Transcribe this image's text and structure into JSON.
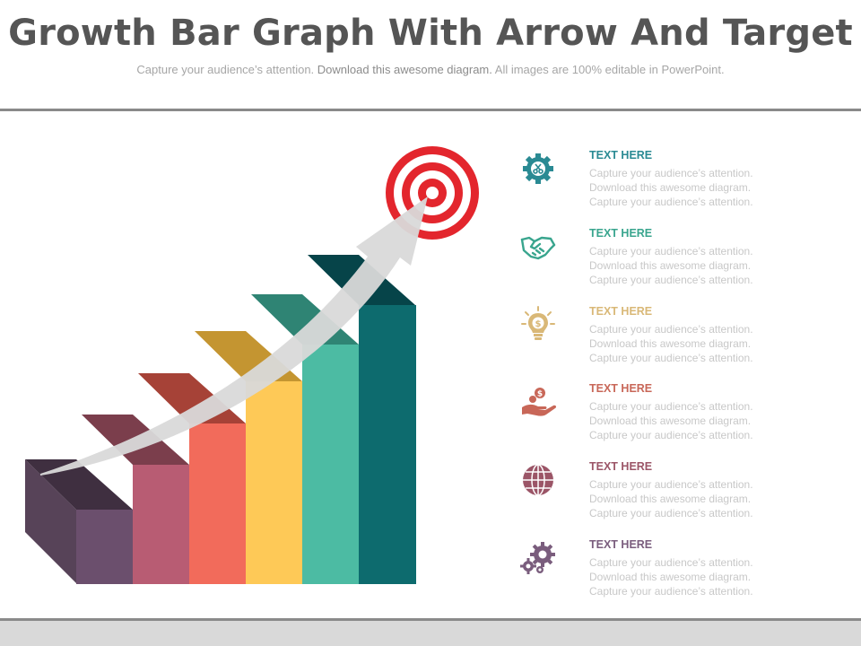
{
  "header": {
    "title": "Growth Bar Graph With Arrow And Target",
    "subtitle_a": "Capture your audience’s attention. ",
    "subtitle_b": "Download this awesome diagram.",
    "subtitle_c": " All images are 100% editable in PowerPoint."
  },
  "colors": {
    "bars": [
      "#6b4f6d",
      "#b85c73",
      "#f26b5b",
      "#fec957",
      "#4cbba3",
      "#0d6b6e"
    ],
    "arrow": "#d9d9d9",
    "target_red": "#e3262d",
    "rule": "#8a8a8a",
    "footer": "#d9d9d9"
  },
  "items": [
    {
      "title": "TEXT HERE",
      "color": "#2a8a93",
      "icon": "gear-scissors-icon",
      "line1": "Capture  your  audience’s  attention.",
      "line2": "Download  this awesome  diagram.",
      "line3": "Capture  your  audience’s  attention."
    },
    {
      "title": "TEXT HERE",
      "color": "#39a58e",
      "icon": "handshake-icon",
      "line1": "Capture  your  audience’s  attention.",
      "line2": "Download  this awesome  diagram.",
      "line3": "Capture  your  audience’s  attention."
    },
    {
      "title": "TEXT HERE",
      "color": "#d9b877",
      "icon": "lightbulb-dollar-icon",
      "line1": "Capture  your  audience’s  attention.",
      "line2": "Download  this awesome  diagram.",
      "line3": "Capture  your  audience’s  attention."
    },
    {
      "title": "TEXT HERE",
      "color": "#c86758",
      "icon": "hand-coins-icon",
      "line1": "Capture  your  audience’s  attention.",
      "line2": "Download  this awesome  diagram.",
      "line3": "Capture  your  audience’s  attention."
    },
    {
      "title": "TEXT HERE",
      "color": "#9b5567",
      "icon": "globe-icon",
      "line1": "Capture  your  audience’s attention.",
      "line2": "Download  this awesome  diagram.",
      "line3": "Capture  your  audience’s  attention."
    },
    {
      "title": "TEXT HERE",
      "color": "#7a5d7d",
      "icon": "gears-icon",
      "line1": "Capture  your  audience’s  attention.",
      "line2": "Download  this awesome  diagram.",
      "line3": "Capture  your  audience’s  attention."
    }
  ]
}
